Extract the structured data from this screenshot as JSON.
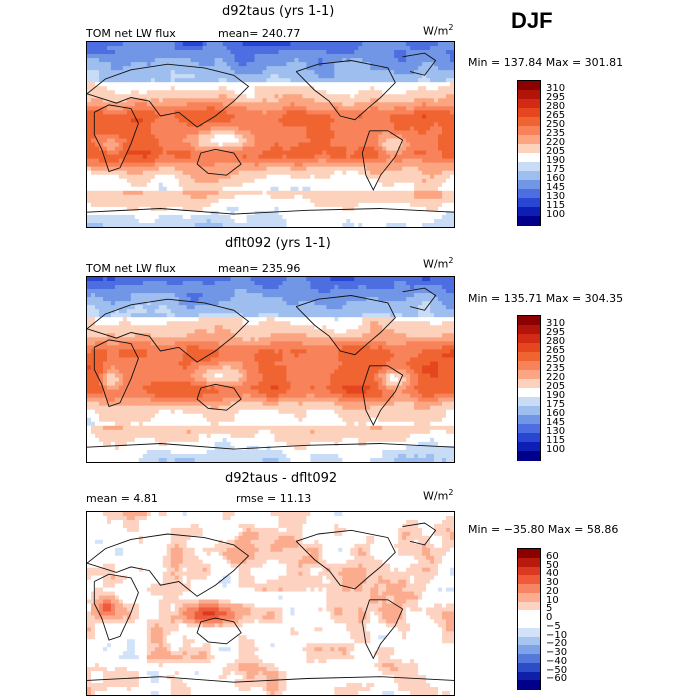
{
  "season": "DJF",
  "panels": [
    {
      "title": "d92taus (yrs 1-1)",
      "left_label": "TOM net LW flux",
      "mean_label": "mean= 240.77",
      "units_base": "W/m",
      "units_exp": "2",
      "minmax": "Min = 137.84  Max = 301.81"
    },
    {
      "title": "dflt092 (yrs 1-1)",
      "left_label": "TOM net LW flux",
      "mean_label": "mean= 235.96",
      "units_base": "W/m",
      "units_exp": "2",
      "minmax": "Min = 135.71  Max = 304.35"
    },
    {
      "title": "d92taus - dflt092",
      "left_label": "mean =    4.81",
      "mean_label": "rmse =   11.13",
      "units_base": "W/m",
      "units_exp": "2",
      "minmax": "Min = −35.80  Max =   58.86"
    }
  ],
  "chart_data": [
    {
      "type": "heatmap",
      "title": "d92taus (yrs 1-1)",
      "field": "TOM net LW flux",
      "units": "W/m2",
      "mean": 240.77,
      "min": 137.84,
      "max": 301.81,
      "colorbar_levels": [
        310,
        295,
        280,
        265,
        250,
        235,
        220,
        205,
        190,
        175,
        160,
        145,
        130,
        115,
        100
      ]
    },
    {
      "type": "heatmap",
      "title": "dflt092 (yrs 1-1)",
      "field": "TOM net LW flux",
      "units": "W/m2",
      "mean": 235.96,
      "min": 135.71,
      "max": 304.35,
      "colorbar_levels": [
        310,
        295,
        280,
        265,
        250,
        235,
        220,
        205,
        190,
        175,
        160,
        145,
        130,
        115,
        100
      ]
    },
    {
      "type": "heatmap",
      "title": "d92taus - dflt092",
      "units": "W/m2",
      "mean": 4.81,
      "rmse": 11.13,
      "min": -35.8,
      "max": 58.86,
      "colorbar_levels": [
        60,
        50,
        40,
        30,
        20,
        10,
        5,
        0,
        -5,
        -10,
        -20,
        -30,
        -40,
        -50,
        -60
      ]
    }
  ],
  "colors": {
    "abs_scale": [
      "#8b0000",
      "#b2140a",
      "#d22a14",
      "#e6461e",
      "#f06432",
      "#f8825a",
      "#fba582",
      "#fcd2bc",
      "#ffffff",
      "#c8dcf6",
      "#9ebeef",
      "#7296e6",
      "#4c6ee1",
      "#2846d2",
      "#0c1eb4",
      "#00008b"
    ],
    "diff_scale": [
      "#8b0000",
      "#b81a0e",
      "#d93a20",
      "#ee5a3a",
      "#f78462",
      "#fbac8e",
      "#fdd2c0",
      "#ffffff",
      "#ffffff",
      "#d2e2f8",
      "#a8c4f0",
      "#7ea2e6",
      "#5478dc",
      "#2c4cc8",
      "#0e20a8",
      "#00008b"
    ]
  },
  "axes_note": "",
  "footer": ""
}
